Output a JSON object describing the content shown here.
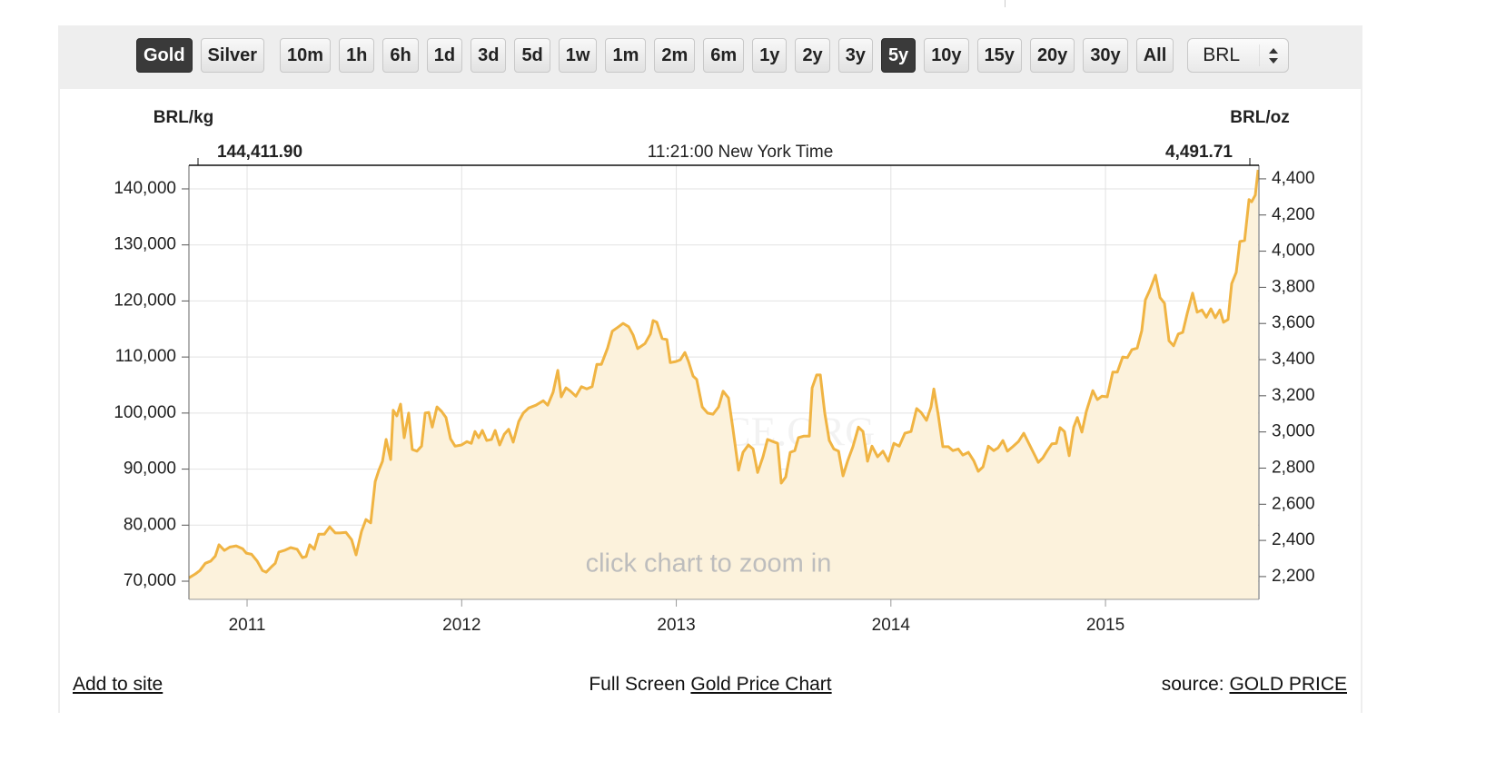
{
  "toolbar": {
    "metals": [
      {
        "label": "Gold",
        "active": true
      },
      {
        "label": "Silver",
        "active": false
      }
    ],
    "ranges": [
      {
        "label": "10m",
        "active": false
      },
      {
        "label": "1h",
        "active": false
      },
      {
        "label": "6h",
        "active": false
      },
      {
        "label": "1d",
        "active": false
      },
      {
        "label": "3d",
        "active": false
      },
      {
        "label": "5d",
        "active": false
      },
      {
        "label": "1w",
        "active": false
      },
      {
        "label": "1m",
        "active": false
      },
      {
        "label": "2m",
        "active": false
      },
      {
        "label": "6m",
        "active": false
      },
      {
        "label": "1y",
        "active": false
      },
      {
        "label": "2y",
        "active": false
      },
      {
        "label": "3y",
        "active": false
      },
      {
        "label": "5y",
        "active": true
      },
      {
        "label": "10y",
        "active": false
      },
      {
        "label": "15y",
        "active": false
      },
      {
        "label": "20y",
        "active": false
      },
      {
        "label": "30y",
        "active": false
      },
      {
        "label": "All",
        "active": false
      }
    ],
    "currency": "BRL"
  },
  "chart_data": {
    "type": "line",
    "y_label": "BRL/kg",
    "y2_label": "BRL/oz",
    "price_left": "144,411.90",
    "time_label": "11:21:00 New York Time",
    "price_right": "4,491.71",
    "watermark": "GOLDPRICE.ORG",
    "hint": "click chart to zoom in",
    "color": "#f0b443",
    "fill": "#fcf2dc",
    "grid": true,
    "xlim": [
      2010.729,
      2015.715
    ],
    "xticks": [
      2011,
      2012,
      2013,
      2014,
      2015
    ],
    "ylim": [
      66760,
      144210
    ],
    "yticks": [
      {
        "value": 70000,
        "label": "70,000"
      },
      {
        "value": 80000,
        "label": "80,000"
      },
      {
        "value": 90000,
        "label": "90,000"
      },
      {
        "value": 100000,
        "label": "100,000"
      },
      {
        "value": 110000,
        "label": "110,000"
      },
      {
        "value": 120000,
        "label": "120,000"
      },
      {
        "value": 130000,
        "label": "130,000"
      },
      {
        "value": 140000,
        "label": "140,000"
      }
    ],
    "y2lim": [
      2074,
      4475
    ],
    "y2ticks": [
      {
        "value": 2200,
        "label": "2,200"
      },
      {
        "value": 2400,
        "label": "2,400"
      },
      {
        "value": 2600,
        "label": "2,600"
      },
      {
        "value": 2800,
        "label": "2,800"
      },
      {
        "value": 3000,
        "label": "3,000"
      },
      {
        "value": 3200,
        "label": "3,200"
      },
      {
        "value": 3400,
        "label": "3,400"
      },
      {
        "value": 3600,
        "label": "3,600"
      },
      {
        "value": 3800,
        "label": "3,800"
      },
      {
        "value": 4000,
        "label": "4,000"
      },
      {
        "value": 4200,
        "label": "4,200"
      },
      {
        "value": 4400,
        "label": "4,400"
      }
    ],
    "x": [
      2010.729,
      2010.759,
      2010.78,
      2010.805,
      2010.831,
      2010.852,
      2010.869,
      2010.894,
      2010.92,
      2010.949,
      2010.979,
      2010.996,
      2011.021,
      2011.047,
      2011.072,
      2011.089,
      2011.114,
      2011.131,
      2011.148,
      2011.174,
      2011.203,
      2011.233,
      2011.258,
      2011.275,
      2011.292,
      2011.313,
      2011.334,
      2011.36,
      2011.385,
      2011.411,
      2011.432,
      2011.461,
      2011.487,
      2011.508,
      2011.533,
      2011.554,
      2011.576,
      2011.597,
      2011.614,
      2011.631,
      2011.648,
      2011.669,
      2011.681,
      2011.698,
      2011.715,
      2011.732,
      2011.753,
      2011.77,
      2011.792,
      2011.813,
      2011.83,
      2011.847,
      2011.863,
      2011.885,
      2011.906,
      2011.927,
      2011.948,
      2011.969,
      2011.999,
      2012.024,
      2012.045,
      2012.062,
      2012.079,
      2012.096,
      2012.117,
      2012.139,
      2012.156,
      2012.177,
      2012.198,
      2012.219,
      2012.24,
      2012.266,
      2012.287,
      2012.312,
      2012.346,
      2012.38,
      2012.401,
      2012.426,
      2012.448,
      2012.464,
      2012.486,
      2012.507,
      2012.532,
      2012.558,
      2012.583,
      2012.608,
      2012.63,
      2012.651,
      2012.68,
      2012.702,
      2012.731,
      2012.752,
      2012.778,
      2012.799,
      2012.82,
      2012.854,
      2012.879,
      2012.892,
      2012.909,
      2012.934,
      2012.956,
      2012.972,
      2012.998,
      2013.019,
      2013.04,
      2013.057,
      2013.078,
      2013.095,
      2013.121,
      2013.146,
      2013.171,
      2013.197,
      2013.218,
      2013.243,
      2013.264,
      2013.29,
      2013.311,
      2013.336,
      2013.358,
      2013.379,
      2013.404,
      2013.425,
      2013.451,
      2013.472,
      2013.489,
      2013.51,
      2013.531,
      2013.552,
      2013.569,
      2013.595,
      2013.62,
      2013.633,
      2013.654,
      2013.671,
      2013.692,
      2013.713,
      2013.734,
      2013.756,
      2013.777,
      2013.798,
      2013.823,
      2013.849,
      2013.87,
      2013.891,
      2013.912,
      2013.938,
      2013.963,
      2013.988,
      2014.014,
      2014.039,
      2014.065,
      2014.094,
      2014.12,
      2014.141,
      2014.166,
      2014.187,
      2014.2,
      2014.221,
      2014.242,
      2014.268,
      2014.289,
      2014.314,
      2014.335,
      2014.361,
      2014.386,
      2014.407,
      2014.429,
      2014.454,
      2014.479,
      2014.5,
      2014.522,
      2014.543,
      2014.568,
      2014.594,
      2014.619,
      2014.64,
      2014.666,
      2014.687,
      2014.708,
      2014.729,
      2014.75,
      2014.771,
      2014.788,
      2014.809,
      2014.831,
      2014.852,
      2014.869,
      2014.89,
      2014.911,
      2014.941,
      2014.962,
      2014.983,
      2015.008,
      2015.034,
      2015.055,
      2015.08,
      2015.102,
      2015.123,
      2015.148,
      2015.169,
      2015.186,
      2015.207,
      2015.233,
      2015.254,
      2015.275,
      2015.296,
      2015.317,
      2015.339,
      2015.36,
      2015.381,
      2015.406,
      2015.427,
      2015.449,
      2015.47,
      2015.491,
      2015.512,
      2015.533,
      2015.55,
      2015.571,
      2015.588,
      2015.609,
      2015.626,
      2015.648,
      2015.669,
      2015.681,
      2015.698,
      2015.711
    ],
    "values": [
      70600,
      71300,
      71900,
      73200,
      73600,
      74500,
      76500,
      75500,
      76100,
      76300,
      75800,
      75000,
      74800,
      73600,
      71900,
      71600,
      72600,
      73200,
      75200,
      75500,
      76000,
      75700,
      74200,
      74400,
      76500,
      75700,
      78400,
      78400,
      79700,
      78600,
      78600,
      78700,
      77400,
      74700,
      78900,
      81000,
      80400,
      87800,
      89800,
      91400,
      95300,
      91700,
      100500,
      99500,
      101600,
      95600,
      100000,
      93500,
      93200,
      94100,
      100000,
      100100,
      97500,
      101100,
      100300,
      99200,
      95400,
      94100,
      94300,
      94900,
      94600,
      96700,
      95600,
      96900,
      95100,
      95300,
      96900,
      94300,
      96200,
      97100,
      94800,
      98500,
      100000,
      100900,
      101400,
      102200,
      101400,
      103700,
      107600,
      102900,
      104500,
      103900,
      103000,
      104700,
      104300,
      104700,
      108700,
      108700,
      111600,
      114600,
      115400,
      116000,
      115400,
      113900,
      111500,
      112400,
      114100,
      116500,
      116200,
      113300,
      113100,
      109000,
      109200,
      109500,
      110800,
      109200,
      106600,
      106000,
      101100,
      100000,
      99800,
      101100,
      103900,
      102700,
      97200,
      89800,
      93000,
      94300,
      93600,
      89400,
      92200,
      95300,
      94900,
      94600,
      87500,
      88600,
      93000,
      93300,
      95600,
      95900,
      95900,
      104500,
      106800,
      106800,
      100000,
      95100,
      93600,
      93200,
      88800,
      91400,
      94000,
      97500,
      96700,
      91400,
      94100,
      92200,
      93200,
      91400,
      94600,
      94100,
      96400,
      96700,
      100800,
      100100,
      98700,
      101100,
      104300,
      99600,
      94000,
      94000,
      93300,
      93600,
      92500,
      93000,
      91500,
      89600,
      90400,
      94100,
      93300,
      93800,
      95100,
      93200,
      94000,
      94900,
      96400,
      94800,
      92800,
      91200,
      92000,
      93300,
      94500,
      94600,
      97400,
      96700,
      92400,
      97500,
      99200,
      96600,
      100300,
      104000,
      102400,
      103000,
      102900,
      107300,
      107300,
      110000,
      109900,
      111300,
      111600,
      114700,
      120200,
      122000,
      124600,
      120600,
      119600,
      112900,
      112000,
      114100,
      114400,
      117800,
      121400,
      118000,
      118400,
      117100,
      118600,
      117000,
      118400,
      116200,
      116700,
      123100,
      125100,
      130600,
      130800,
      138100,
      137700,
      138900,
      143400
    ]
  },
  "footer": {
    "add_link": "Add to site",
    "full_screen": "Full Screen",
    "chart_link": "Gold Price Chart",
    "source_label": "source:",
    "source_link": "GOLD PRICE"
  }
}
